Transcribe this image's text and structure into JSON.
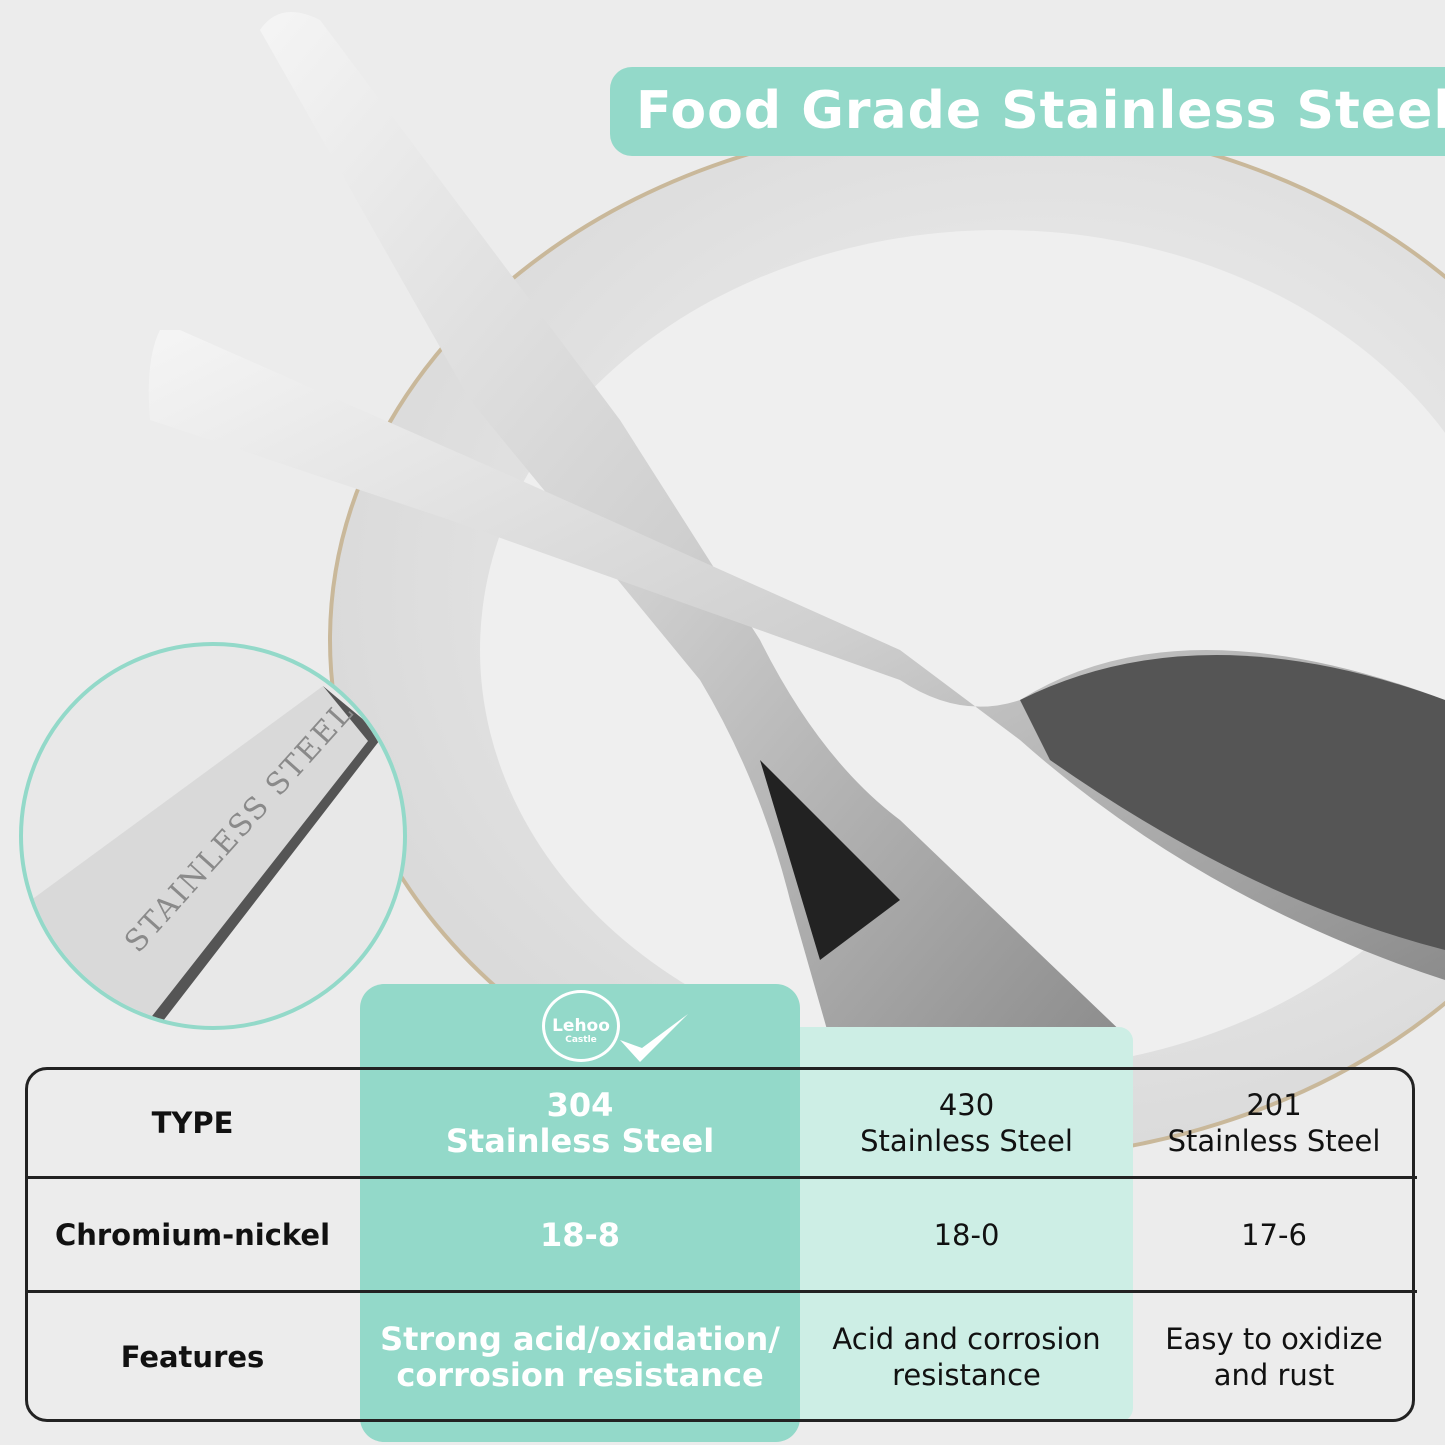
{
  "banner": {
    "title": "Food Grade Stainless Steel"
  },
  "inset": {
    "engraving": "STAINLESS STEEL"
  },
  "logo": {
    "name": "Lehoo",
    "sub": "Castle",
    "icon": "checkmark-icon"
  },
  "colors": {
    "accent": "#93d9c9",
    "accent_light": "#cdeee5"
  },
  "table": {
    "rows": [
      {
        "label": "TYPE",
        "cells": [
          [
            "304",
            "Stainless Steel"
          ],
          [
            "430",
            "Stainless Steel"
          ],
          [
            "201",
            "Stainless Steel"
          ]
        ]
      },
      {
        "label": "Chromium-nickel",
        "cells": [
          [
            "18-8"
          ],
          [
            "18-0"
          ],
          [
            "17-6"
          ]
        ]
      },
      {
        "label": "Features",
        "cells": [
          [
            "Strong acid/oxidation/",
            "corrosion resistance"
          ],
          [
            "Acid and corrosion",
            "resistance"
          ],
          [
            "Easy to oxidize",
            "and rust"
          ]
        ]
      }
    ]
  }
}
